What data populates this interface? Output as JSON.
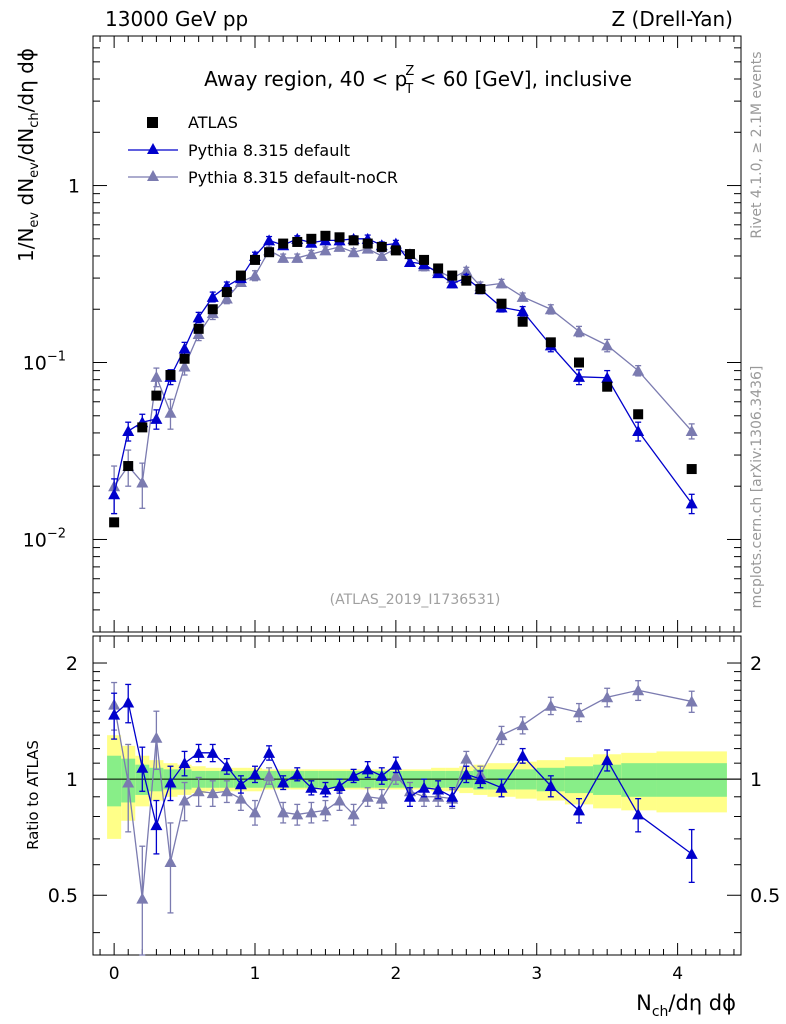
{
  "header": {
    "left": "13000 GeV pp",
    "right": "Z (Drell-Yan)"
  },
  "side_labels": {
    "top": "Rivet 4.1.0, ≥ 2.1M events",
    "bottom": "mcplots.cern.ch [arXiv:1306.3436]"
  },
  "chart_data": {
    "type": "scatter",
    "title_parts": {
      "pre": "Away region, 40 < p",
      "sup": "Z",
      "sub": "T",
      "post": " < 60 [GeV], inclusive"
    },
    "ylabel_main": "1/N_ev dN_ev/dN_ch/dη dφ",
    "ylabel_ratio": "Ratio to ATLAS",
    "xlabel": "N_ch/dη dφ",
    "analysis_id": "(ATLAS_2019_I1736531)",
    "legend": [
      "ATLAS",
      "Pythia 8.315 default",
      "Pythia 8.315 default-noCR"
    ],
    "xlim": [
      -0.15,
      4.45
    ],
    "ylim_main": [
      0.003,
      7
    ],
    "ylim_ratio": [
      0.35,
      2.35
    ],
    "x_ticks": [
      "0",
      "1",
      "2",
      "3",
      "4"
    ],
    "y_ticks_main": [
      {
        "base": "10",
        "exp": "−2"
      },
      {
        "base": "10",
        "exp": "−1"
      },
      {
        "base": "1",
        "exp": ""
      }
    ],
    "y_ticks_ratio": [
      "0.5",
      "1",
      "2"
    ],
    "x": [
      0,
      0.1,
      0.2,
      0.3,
      0.4,
      0.5,
      0.6,
      0.7,
      0.8,
      0.9,
      1.0,
      1.1,
      1.2,
      1.3,
      1.4,
      1.5,
      1.6,
      1.7,
      1.8,
      1.9,
      2.0,
      2.1,
      2.2,
      2.3,
      2.4,
      2.5,
      2.6,
      2.75,
      2.9,
      3.1,
      3.3,
      3.5,
      3.72,
      4.1
    ],
    "atlas": [
      0.0125,
      0.026,
      0.043,
      0.065,
      0.085,
      0.105,
      0.155,
      0.2,
      0.25,
      0.31,
      0.38,
      0.42,
      0.47,
      0.48,
      0.5,
      0.52,
      0.51,
      0.49,
      0.47,
      0.45,
      0.43,
      0.41,
      0.38,
      0.34,
      0.31,
      0.29,
      0.26,
      0.215,
      0.17,
      0.13,
      0.1,
      0.073,
      0.051,
      0.025
    ],
    "series": [
      {
        "name": "Pythia 8.315 default",
        "color": "#0000cc",
        "values": [
          0.018,
          0.041,
          0.046,
          0.048,
          0.083,
          0.12,
          0.18,
          0.235,
          0.27,
          0.3,
          0.4,
          0.49,
          0.46,
          0.5,
          0.475,
          0.49,
          0.49,
          0.5,
          0.5,
          0.46,
          0.47,
          0.37,
          0.36,
          0.32,
          0.28,
          0.3,
          0.26,
          0.205,
          0.195,
          0.125,
          0.083,
          0.082,
          0.041,
          0.016
        ],
        "errors": [
          0.004,
          0.005,
          0.005,
          0.006,
          0.008,
          0.01,
          0.012,
          0.015,
          0.015,
          0.015,
          0.02,
          0.025,
          0.02,
          0.02,
          0.02,
          0.02,
          0.02,
          0.02,
          0.025,
          0.02,
          0.02,
          0.02,
          0.02,
          0.015,
          0.015,
          0.015,
          0.015,
          0.012,
          0.012,
          0.01,
          0.008,
          0.008,
          0.005,
          0.002
        ]
      },
      {
        "name": "Pythia 8.315 default-noCR",
        "color": "#7b7bb0",
        "values": [
          0.02,
          0.026,
          0.021,
          0.083,
          0.052,
          0.095,
          0.145,
          0.19,
          0.23,
          0.285,
          0.31,
          0.43,
          0.39,
          0.39,
          0.41,
          0.43,
          0.45,
          0.42,
          0.44,
          0.4,
          0.44,
          0.41,
          0.35,
          0.33,
          0.3,
          0.33,
          0.27,
          0.28,
          0.235,
          0.2,
          0.15,
          0.125,
          0.09,
          0.041
        ],
        "errors": [
          0.006,
          0.006,
          0.006,
          0.01,
          0.01,
          0.01,
          0.012,
          0.015,
          0.015,
          0.015,
          0.02,
          0.02,
          0.02,
          0.02,
          0.02,
          0.02,
          0.02,
          0.02,
          0.02,
          0.02,
          0.02,
          0.02,
          0.02,
          0.015,
          0.015,
          0.015,
          0.015,
          0.015,
          0.012,
          0.012,
          0.01,
          0.01,
          0.006,
          0.004
        ]
      }
    ],
    "ratio_series": [
      {
        "name": "Pythia 8.315 default",
        "color": "#0000cc",
        "values": [
          1.47,
          1.58,
          1.07,
          0.76,
          0.98,
          1.1,
          1.17,
          1.17,
          1.08,
          0.97,
          1.03,
          1.17,
          0.98,
          1.03,
          0.95,
          0.94,
          0.96,
          1.02,
          1.06,
          1.02,
          1.09,
          0.9,
          0.95,
          0.94,
          0.9,
          1.03,
          1.0,
          0.95,
          1.15,
          0.96,
          0.83,
          1.12,
          0.81,
          0.64
        ],
        "errors": [
          0.2,
          0.18,
          0.14,
          0.12,
          0.1,
          0.08,
          0.06,
          0.06,
          0.05,
          0.05,
          0.05,
          0.05,
          0.04,
          0.04,
          0.04,
          0.04,
          0.04,
          0.04,
          0.05,
          0.05,
          0.05,
          0.05,
          0.05,
          0.05,
          0.05,
          0.05,
          0.05,
          0.05,
          0.05,
          0.06,
          0.06,
          0.07,
          0.08,
          0.1
        ]
      },
      {
        "name": "Pythia 8.315 default-noCR",
        "color": "#7b7bb0",
        "values": [
          1.56,
          0.98,
          0.49,
          1.28,
          0.61,
          0.88,
          0.93,
          0.92,
          0.93,
          0.89,
          0.82,
          1.02,
          0.82,
          0.81,
          0.82,
          0.83,
          0.88,
          0.81,
          0.9,
          0.89,
          1.02,
          0.93,
          0.9,
          0.9,
          0.89,
          1.13,
          1.03,
          1.3,
          1.38,
          1.55,
          1.49,
          1.63,
          1.7,
          1.59
        ],
        "errors": [
          0.22,
          0.25,
          0.18,
          0.22,
          0.16,
          0.1,
          0.08,
          0.07,
          0.06,
          0.06,
          0.06,
          0.05,
          0.05,
          0.05,
          0.05,
          0.05,
          0.05,
          0.05,
          0.05,
          0.05,
          0.05,
          0.05,
          0.05,
          0.05,
          0.05,
          0.05,
          0.05,
          0.07,
          0.07,
          0.08,
          0.08,
          0.09,
          0.1,
          0.1
        ]
      }
    ],
    "ratio_bands": {
      "edges": [
        -0.05,
        0.05,
        0.15,
        0.25,
        0.35,
        0.45,
        0.55,
        0.65,
        0.75,
        0.85,
        0.95,
        1.05,
        1.15,
        1.25,
        1.35,
        1.45,
        1.55,
        1.65,
        1.75,
        1.85,
        1.95,
        2.05,
        2.15,
        2.25,
        2.35,
        2.45,
        2.55,
        2.65,
        2.85,
        3.0,
        3.2,
        3.4,
        3.6,
        3.85,
        4.35
      ],
      "green": [
        0.15,
        0.13,
        0.09,
        0.07,
        0.06,
        0.06,
        0.05,
        0.05,
        0.05,
        0.05,
        0.05,
        0.05,
        0.05,
        0.05,
        0.05,
        0.05,
        0.05,
        0.05,
        0.05,
        0.05,
        0.05,
        0.05,
        0.05,
        0.05,
        0.05,
        0.05,
        0.06,
        0.06,
        0.06,
        0.07,
        0.08,
        0.09,
        0.1,
        0.1
      ],
      "yellow": [
        0.3,
        0.22,
        0.15,
        0.12,
        0.1,
        0.09,
        0.08,
        0.07,
        0.07,
        0.07,
        0.07,
        0.06,
        0.06,
        0.06,
        0.06,
        0.06,
        0.06,
        0.06,
        0.06,
        0.06,
        0.06,
        0.06,
        0.06,
        0.07,
        0.07,
        0.08,
        0.09,
        0.1,
        0.11,
        0.12,
        0.14,
        0.16,
        0.17,
        0.18
      ]
    }
  }
}
